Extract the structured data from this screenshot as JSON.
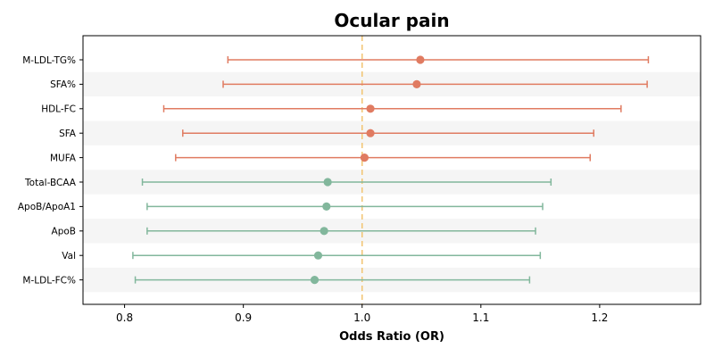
{
  "chart_data": {
    "type": "forest",
    "title": "Ocular pain",
    "xlabel": "Odds Ratio (OR)",
    "ylabel": "",
    "xlim": [
      0.765,
      1.285
    ],
    "xticks": [
      0.8,
      0.9,
      1.0,
      1.1,
      1.2
    ],
    "xtick_labels": [
      "0.8",
      "0.9",
      "1.0",
      "1.1",
      "1.2"
    ],
    "reference_line": 1.0,
    "grid": false,
    "row_shading": "alternating",
    "colors": {
      "positive": "#e07b61",
      "negative": "#82b79c",
      "reference_line": "#f2c470",
      "shade": "#f5f5f5"
    },
    "rows": [
      {
        "label": "M-LDL-TG%",
        "or": 1.049,
        "lower": 0.887,
        "upper": 1.241,
        "group": "positive"
      },
      {
        "label": "SFA%",
        "or": 1.046,
        "lower": 0.883,
        "upper": 1.24,
        "group": "positive"
      },
      {
        "label": "HDL-FC",
        "or": 1.007,
        "lower": 0.833,
        "upper": 1.218,
        "group": "positive"
      },
      {
        "label": "SFA",
        "or": 1.007,
        "lower": 0.849,
        "upper": 1.195,
        "group": "positive"
      },
      {
        "label": "MUFA",
        "or": 1.002,
        "lower": 0.843,
        "upper": 1.192,
        "group": "positive"
      },
      {
        "label": "Total-BCAA",
        "or": 0.971,
        "lower": 0.815,
        "upper": 1.159,
        "group": "negative"
      },
      {
        "label": "ApoB/ApoA1",
        "or": 0.97,
        "lower": 0.819,
        "upper": 1.152,
        "group": "negative"
      },
      {
        "label": "ApoB",
        "or": 0.968,
        "lower": 0.819,
        "upper": 1.146,
        "group": "negative"
      },
      {
        "label": "Val",
        "or": 0.963,
        "lower": 0.807,
        "upper": 1.15,
        "group": "negative"
      },
      {
        "label": "M-LDL-FC%",
        "or": 0.96,
        "lower": 0.809,
        "upper": 1.141,
        "group": "negative"
      }
    ]
  }
}
